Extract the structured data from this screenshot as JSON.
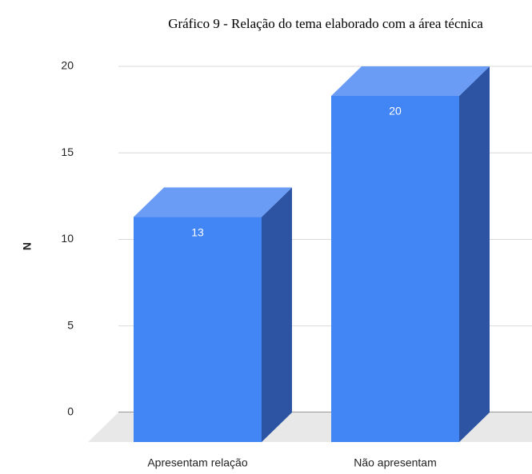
{
  "chart_data": {
    "type": "bar3d",
    "title": "Gráfico 9 - Relação do tema elaborado com a área técnica",
    "y_label": "N",
    "categories": [
      "Apresentam relação",
      "Não apresentam"
    ],
    "values": [
      13,
      20
    ],
    "color": "#4285f4",
    "ylim": [
      0,
      20
    ],
    "yticks": [
      0,
      5,
      10,
      15,
      20
    ],
    "grid": true
  }
}
